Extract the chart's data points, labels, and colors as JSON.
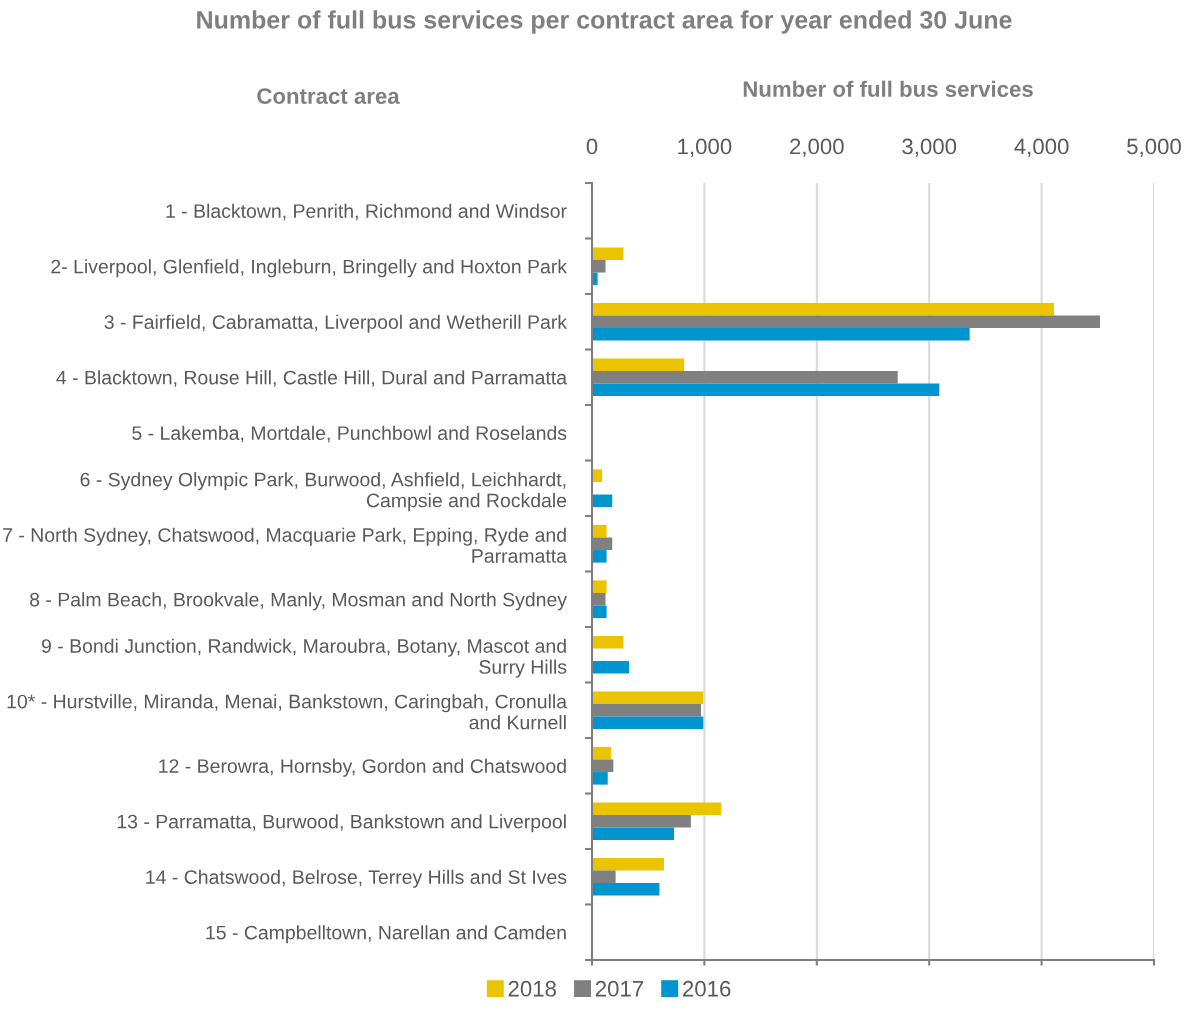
{
  "chart_data": {
    "type": "bar",
    "orientation": "horizontal",
    "title": "Number of full bus services per contract area for year ended 30 June",
    "xlabel": "Number of full bus services",
    "ylabel": "Contract area",
    "categories": [
      "1 - Blacktown, Penrith, Richmond and Windsor",
      "2- Liverpool, Glenfield, Ingleburn, Bringelly and Hoxton Park",
      "3 - Fairfield, Cabramatta, Liverpool and Wetherill Park",
      "4 - Blacktown, Rouse Hill, Castle Hill, Dural and Parramatta",
      "5 - Lakemba, Mortdale, Punchbowl and Roselands",
      "6 - Sydney Olympic Park, Burwood, Ashfield, Leichhardt, Campsie and Rockdale",
      "7 - North Sydney, Chatswood, Macquarie Park, Epping, Ryde and Parramatta",
      "8 - Palm Beach, Brookvale, Manly, Mosman and North Sydney",
      "9 - Bondi Junction, Randwick, Maroubra, Botany, Mascot and Surry Hills",
      "10* - Hurstville, Miranda, Menai, Bankstown, Caringbah, Cronulla and Kurnell",
      "12 - Berowra, Hornsby, Gordon and Chatswood",
      "13 - Parramatta, Burwood, Bankstown and Liverpool",
      "14 - Chatswood, Belrose, Terrey Hills and St Ives",
      "15 - Campbelltown, Narellan and Camden"
    ],
    "series": [
      {
        "name": "2018",
        "color": "#ebc400",
        "values": [
          null,
          280,
          4110,
          820,
          null,
          90,
          130,
          130,
          280,
          990,
          170,
          1150,
          640,
          null
        ]
      },
      {
        "name": "2017",
        "color": "#808080",
        "values": [
          null,
          120,
          4520,
          2720,
          null,
          null,
          180,
          120,
          null,
          970,
          190,
          880,
          210,
          null
        ]
      },
      {
        "name": "2016",
        "color": "#0095cf",
        "values": [
          null,
          50,
          3360,
          3090,
          null,
          180,
          130,
          130,
          330,
          990,
          140,
          730,
          600,
          null
        ]
      }
    ],
    "xlim": [
      0,
      5000
    ],
    "xticks": [
      0,
      {
        "value": 1000,
        "label": "1,000"
      },
      {
        "value": 2000,
        "label": "2,000"
      },
      {
        "value": 3000,
        "label": "3,000"
      },
      {
        "value": 4000,
        "label": "4,000"
      },
      {
        "value": 5000,
        "label": "5,000"
      }
    ],
    "grid": "x",
    "legend": "bottom"
  }
}
